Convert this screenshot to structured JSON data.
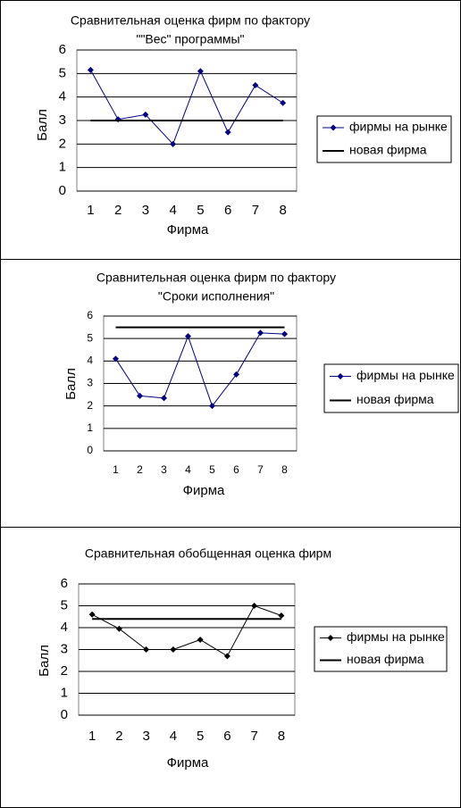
{
  "chart_data": [
    {
      "type": "line",
      "title": [
        "Сравнительная оценка фирм по фактору",
        "\"\"Вес\" программы\""
      ],
      "x_label": "Фирма",
      "y_label": "Балл",
      "categories": [
        "1",
        "2",
        "3",
        "4",
        "5",
        "6",
        "7",
        "8"
      ],
      "series": [
        {
          "name": "фирмы на рынке",
          "color": "#000080",
          "values": [
            5.15,
            3.05,
            3.25,
            2,
            5.1,
            2.5,
            4.5,
            3.75
          ]
        },
        {
          "name": "новая фирма",
          "color": "#000000",
          "values": [
            3,
            3,
            3,
            3,
            3,
            3,
            3,
            3
          ]
        }
      ],
      "ylim": [
        0,
        6
      ],
      "yticks": [
        0,
        1,
        2,
        3,
        4,
        5,
        6
      ],
      "grid": true,
      "legend": "right"
    },
    {
      "type": "line",
      "title": [
        "Сравнительная оценка фирм по фактору",
        "\"Сроки исполнения\""
      ],
      "x_label": "Фирма",
      "y_label": "Балл",
      "categories": [
        "1",
        "2",
        "3",
        "4",
        "5",
        "6",
        "7",
        "8"
      ],
      "series": [
        {
          "name": "фирмы на рынке",
          "color": "#000080",
          "values": [
            4.1,
            2.45,
            2.35,
            5.1,
            2,
            3.4,
            5.25,
            5.2
          ]
        },
        {
          "name": "новая фирма",
          "color": "#000000",
          "values": [
            5.5,
            5.5,
            5.5,
            5.5,
            5.5,
            5.5,
            5.5,
            5.5
          ]
        }
      ],
      "ylim": [
        0,
        6
      ],
      "yticks": [
        0,
        1,
        2,
        3,
        4,
        5,
        6
      ],
      "grid": true,
      "legend": "right"
    },
    {
      "type": "line",
      "title": [
        "Сравнительная обобщенная оценка фирм"
      ],
      "x_label": "Фирма",
      "y_label": "Балл",
      "categories": [
        "1",
        "2",
        "3",
        "4",
        "5",
        "6",
        "7",
        "8"
      ],
      "series": [
        {
          "name": "фирмы на рынке",
          "color": "#000000",
          "values": [
            4.6,
            3.95,
            3,
            3,
            3.45,
            2.7,
            5,
            4.55
          ]
        },
        {
          "name": "новая фирма",
          "color": "#000000",
          "values": [
            4.4,
            4.4,
            4.4,
            4.4,
            4.4,
            4.4,
            4.4,
            4.4
          ]
        }
      ],
      "ylim": [
        0,
        6
      ],
      "yticks": [
        0,
        1,
        2,
        3,
        4,
        5,
        6
      ],
      "grid": true,
      "legend": "right"
    }
  ]
}
